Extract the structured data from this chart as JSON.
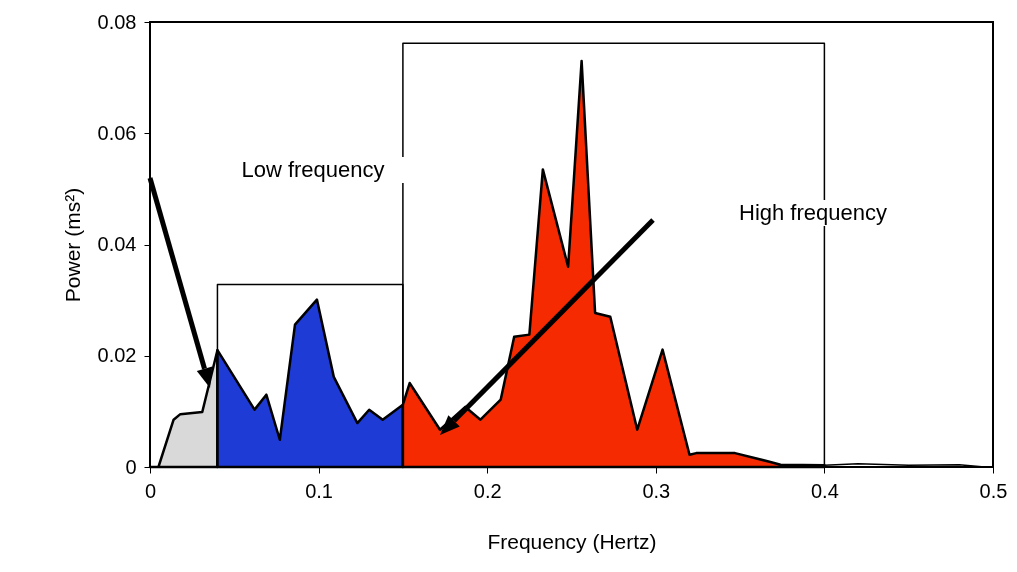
{
  "chart_data": {
    "type": "area",
    "xlabel": "Frequency (Hertz)",
    "ylabel": "Power (ms²)",
    "xlim": [
      0,
      0.5
    ],
    "xticks": [
      0,
      0.1,
      0.2,
      0.3,
      0.4,
      0.5
    ],
    "ylim": [
      0,
      0.08
    ],
    "yticks": [
      0,
      0.02,
      0.04,
      0.06,
      0.08
    ],
    "grid": false,
    "series": [
      {
        "color": "#d9d9d9",
        "x": [
          0,
          0.005,
          0.014,
          0.018,
          0.031,
          0.04
        ],
        "values": [
          0,
          0,
          0.0085,
          0.0095,
          0.0099,
          0.021
        ]
      },
      {
        "color": "#1f3bd6",
        "x": [
          0.04,
          0.062,
          0.069,
          0.077,
          0.086,
          0.099,
          0.109,
          0.123,
          0.13,
          0.138,
          0.15
        ],
        "values": [
          0.021,
          0.0103,
          0.013,
          0.0049,
          0.0256,
          0.0301,
          0.0162,
          0.0079,
          0.0103,
          0.0085,
          0.0112
        ]
      },
      {
        "color": "#f52a00",
        "x": [
          0.15,
          0.154,
          0.172,
          0.187,
          0.196,
          0.208,
          0.216,
          0.225,
          0.233,
          0.248,
          0.256,
          0.264,
          0.273,
          0.289,
          0.304,
          0.32,
          0.324,
          0.347,
          0.368,
          0.374,
          0.4
        ],
        "values": [
          0.0112,
          0.0151,
          0.0067,
          0.0108,
          0.0085,
          0.0121,
          0.0234,
          0.0238,
          0.0535,
          0.036,
          0.073,
          0.0277,
          0.027,
          0.0067,
          0.0211,
          0.0022,
          0.0025,
          0.0025,
          0.0009,
          0.0004,
          0.0003
        ]
      },
      {
        "type": "line",
        "color": "#000000",
        "x": [
          0.4,
          0.42,
          0.45,
          0.48,
          0.495
        ],
        "values": [
          0.0003,
          0.0006,
          0.0003,
          0.0004,
          0
        ]
      },
      {
        "type": "line",
        "color": "#000000",
        "x": [
          0.04,
          0.04,
          0.15,
          0.15
        ],
        "values": [
          0,
          0.0328,
          0.0328,
          0
        ]
      },
      {
        "type": "line",
        "color": "#000000",
        "x": [
          0.15,
          0.15,
          0.4,
          0.4
        ],
        "values": [
          0,
          0.0762,
          0.0762,
          0
        ]
      }
    ],
    "annotations": [
      "Low frequency",
      "High frequency"
    ]
  }
}
